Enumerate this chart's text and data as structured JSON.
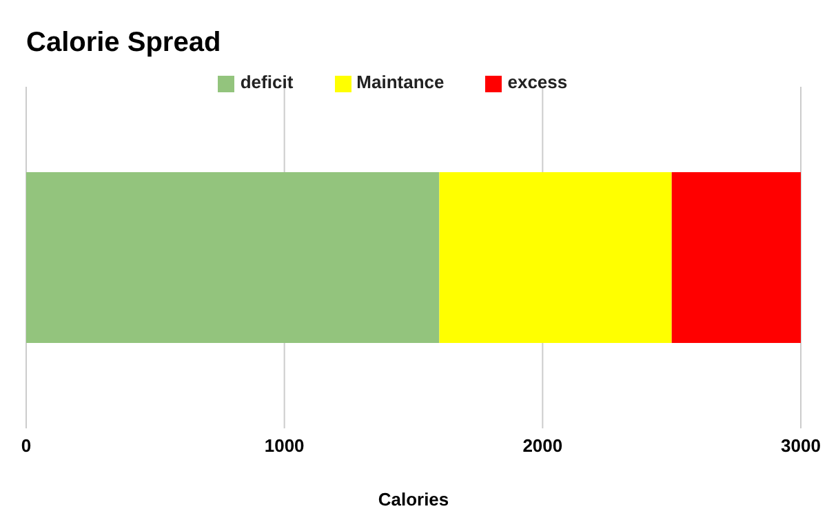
{
  "chart_data": {
    "type": "bar",
    "title": "Calorie Spread",
    "xlabel": "Calories",
    "orientation": "horizontal",
    "stacked": true,
    "categories": [
      null
    ],
    "series": [
      {
        "name": "deficit",
        "color": "#93c47d",
        "values": [
          1600
        ]
      },
      {
        "name": "Maintance",
        "color": "#ffff00",
        "values": [
          900
        ]
      },
      {
        "name": "excess",
        "color": "#ff0000",
        "values": [
          500
        ]
      }
    ],
    "xlim": [
      0,
      3000
    ],
    "xticks": [
      0,
      1000,
      2000,
      3000
    ],
    "grid": "x",
    "legend": "top"
  }
}
